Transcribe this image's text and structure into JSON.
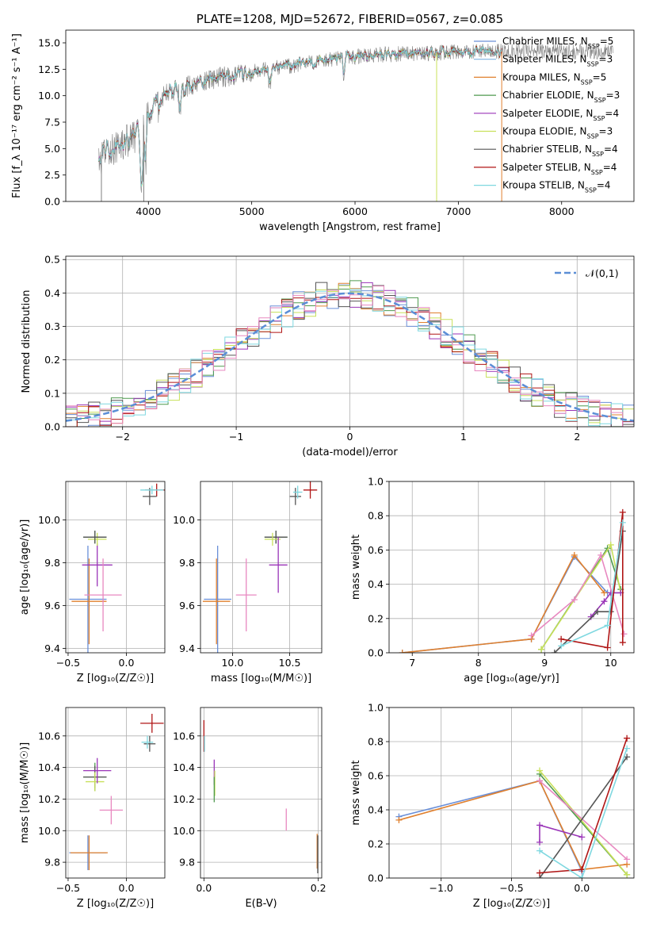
{
  "chart_data": [
    {
      "type": "line",
      "title": "PLATE=1208, MJD=52672, FIBERID=0567, z=0.085",
      "xlabel": "wavelength [Angstrom, rest frame]",
      "ylabel": "Flux [f_λ 10⁻¹⁷ erg cm⁻² s⁻¹ A⁻¹]",
      "xlim": [
        3200,
        8700
      ],
      "ylim": [
        0,
        16.2
      ],
      "xticks": [
        "4000",
        "5000",
        "6000",
        "7000",
        "8000"
      ],
      "yticks": [
        "0.0",
        "2.5",
        "5.0",
        "7.5",
        "10.0",
        "12.5",
        "15.0"
      ],
      "legend_position": "top-right",
      "observed_data_color": "#808080",
      "series": [
        {
          "name": "Chabrier MILES, N_SSP=5",
          "color": "#6a8fd8"
        },
        {
          "name": "Salpeter MILES, N_SSP=3",
          "color": "#7fb3e0"
        },
        {
          "name": "Kroupa MILES, N_SSP=5",
          "color": "#e0802e"
        },
        {
          "name": "Chabrier ELODIE, N_SSP=3",
          "color": "#4f9a4f"
        },
        {
          "name": "Salpeter ELODIE, N_SSP=4",
          "color": "#9a35b8"
        },
        {
          "name": "Kroupa ELODIE, N_SSP=3",
          "color": "#c8e05a"
        },
        {
          "name": "Chabrier STELIB, N_SSP=4",
          "color": "#555555"
        },
        {
          "name": "Salpeter STELIB, N_SSP=4",
          "color": "#b01515"
        },
        {
          "name": "Kroupa STELIB, N_SSP=4",
          "color": "#7fd8e0"
        }
      ],
      "continuum_points": [
        [
          3520,
          3.5
        ],
        [
          3600,
          4.8
        ],
        [
          3700,
          5.2
        ],
        [
          3800,
          5.8
        ],
        [
          3900,
          6.3
        ],
        [
          4000,
          8.0
        ],
        [
          4100,
          9.8
        ],
        [
          4200,
          10.3
        ],
        [
          4400,
          11.0
        ],
        [
          4600,
          11.5
        ],
        [
          4800,
          11.9
        ],
        [
          5000,
          12.2
        ],
        [
          5200,
          12.6
        ],
        [
          5500,
          13.0
        ],
        [
          5800,
          13.5
        ],
        [
          6000,
          13.7
        ],
        [
          6300,
          13.9
        ],
        [
          6600,
          14.0
        ],
        [
          6900,
          14.1
        ],
        [
          7200,
          14.2
        ],
        [
          7420,
          14.2
        ]
      ],
      "observed_extent": [
        3520,
        8500
      ]
    },
    {
      "type": "bar",
      "xlabel": "(data-model)/error",
      "ylabel": "Normed distribution",
      "xlim": [
        -2.5,
        2.5
      ],
      "ylim": [
        0,
        0.51
      ],
      "xticks": [
        "−2",
        "−1",
        "0",
        "1",
        "2"
      ],
      "yticks": [
        "0.0",
        "0.1",
        "0.2",
        "0.3",
        "0.4",
        "0.5"
      ],
      "legend": "𝒩(0,1)",
      "normal_curve_color": "#5b8ed6",
      "bin_width": 0.1
    },
    {
      "type": "scatter",
      "xlabel": "Z [log₁₀(Z/Z☉)]",
      "ylabel": "age  [log₁₀(age/yr)]",
      "xlim": [
        -0.52,
        0.33
      ],
      "ylim": [
        9.38,
        10.18
      ],
      "xticks": [
        "−0.5",
        "0.0"
      ],
      "yticks": [
        "9.4",
        "9.6",
        "9.8",
        "10.0"
      ],
      "points": [
        {
          "x": -0.33,
          "xerr": 0.16,
          "y": 9.63,
          "yerr": 0.25,
          "color": "#6a8fd8"
        },
        {
          "x": -0.32,
          "xerr": 0.15,
          "y": 9.62,
          "yerr": 0.2,
          "color": "#e0802e"
        },
        {
          "x": -0.27,
          "xerr": 0.1,
          "y": 9.92,
          "yerr": 0.03,
          "color": "#4f9a4f"
        },
        {
          "x": -0.25,
          "xerr": 0.13,
          "y": 9.79,
          "yerr": 0.1,
          "color": "#9a35b8"
        },
        {
          "x": -0.25,
          "xerr": 0.08,
          "y": 9.91,
          "yerr": 0.03,
          "color": "#c8e05a"
        },
        {
          "x": -0.27,
          "xerr": 0.1,
          "y": 9.92,
          "yerr": 0.03,
          "color": "#555555"
        },
        {
          "x": -0.2,
          "xerr": 0.16,
          "y": 9.65,
          "yerr": 0.17,
          "color": "#e888c0"
        },
        {
          "x": 0.26,
          "xerr": 0.1,
          "y": 10.14,
          "yerr": 0.03,
          "color": "#b01515"
        },
        {
          "x": 0.2,
          "xerr": 0.06,
          "y": 10.11,
          "yerr": 0.04,
          "color": "#555555"
        },
        {
          "x": 0.22,
          "xerr": 0.1,
          "y": 10.14,
          "yerr": 0.02,
          "color": "#7fd8e0"
        }
      ]
    },
    {
      "type": "scatter",
      "xlabel": "mass [log₁₀(M/M☉)]",
      "ylabel": "",
      "xlim": [
        9.72,
        10.78
      ],
      "ylim": [
        9.38,
        10.18
      ],
      "xticks": [
        "10.0",
        "10.5"
      ],
      "yticks": [
        "9.4",
        "9.6",
        "9.8",
        "10.0"
      ],
      "points": [
        {
          "x": 9.87,
          "xerr": 0.12,
          "y": 9.63,
          "yerr": 0.25,
          "color": "#6a8fd8"
        },
        {
          "x": 9.86,
          "xerr": 0.12,
          "y": 9.62,
          "yerr": 0.2,
          "color": "#e0802e"
        },
        {
          "x": 10.38,
          "xerr": 0.1,
          "y": 9.92,
          "yerr": 0.03,
          "color": "#4f9a4f"
        },
        {
          "x": 10.38,
          "xerr": 0.1,
          "y": 9.92,
          "yerr": 0.03,
          "color": "#555555"
        },
        {
          "x": 10.35,
          "xerr": 0.07,
          "y": 9.91,
          "yerr": 0.03,
          "color": "#c8e05a"
        },
        {
          "x": 10.4,
          "xerr": 0.08,
          "y": 9.79,
          "yerr": 0.13,
          "color": "#9a35b8"
        },
        {
          "x": 10.12,
          "xerr": 0.09,
          "y": 9.65,
          "yerr": 0.17,
          "color": "#e888c0"
        },
        {
          "x": 10.68,
          "xerr": 0.06,
          "y": 10.14,
          "yerr": 0.04,
          "color": "#b01515"
        },
        {
          "x": 10.55,
          "xerr": 0.05,
          "y": 10.11,
          "yerr": 0.04,
          "color": "#555555"
        },
        {
          "x": 10.57,
          "xerr": 0.04,
          "y": 10.13,
          "yerr": 0.03,
          "color": "#7fd8e0"
        }
      ]
    },
    {
      "type": "line",
      "xlabel": "age  [log₁₀(age/yr)]",
      "ylabel": "mass weight",
      "xlim": [
        6.65,
        10.35
      ],
      "ylim": [
        0,
        1.0
      ],
      "xticks": [
        "7",
        "8",
        "9",
        "10"
      ],
      "yticks": [
        "0.0",
        "0.2",
        "0.4",
        "0.6",
        "0.8",
        "1.0"
      ],
      "series": [
        {
          "color": "#6a8fd8",
          "x": [
            6.85,
            8.8,
            9.45,
            9.95
          ],
          "y": [
            0.0,
            0.08,
            0.56,
            0.35
          ]
        },
        {
          "color": "#e0802e",
          "x": [
            6.85,
            8.8,
            9.45,
            9.9
          ],
          "y": [
            0.0,
            0.08,
            0.57,
            0.35
          ]
        },
        {
          "color": "#4f9a4f",
          "x": [
            8.95,
            9.95,
            10.15
          ],
          "y": [
            0.02,
            0.61,
            0.37
          ]
        },
        {
          "color": "#c8e05a",
          "x": [
            8.95,
            10.0,
            10.15
          ],
          "y": [
            0.02,
            0.63,
            0.35
          ]
        },
        {
          "color": "#9a35b8",
          "x": [
            9.7,
            9.9,
            10.0,
            10.15
          ],
          "y": [
            0.21,
            0.3,
            0.35,
            0.35
          ]
        },
        {
          "color": "#e888c0",
          "x": [
            8.8,
            9.45,
            9.85,
            10.2
          ],
          "y": [
            0.1,
            0.31,
            0.57,
            0.11
          ]
        },
        {
          "color": "#555555",
          "x": [
            9.15,
            9.8,
            10.0,
            10.18
          ],
          "y": [
            0.0,
            0.24,
            0.24,
            0.71
          ]
        },
        {
          "color": "#b01515",
          "x": [
            9.25,
            9.95,
            10.18,
            10.18
          ],
          "y": [
            0.08,
            0.03,
            0.82,
            0.06
          ]
        },
        {
          "color": "#7fd8e0",
          "x": [
            9.25,
            9.95,
            10.18
          ],
          "y": [
            0.04,
            0.16,
            0.76
          ]
        }
      ]
    },
    {
      "type": "scatter",
      "xlabel": "Z [log₁₀(Z/Z☉)]",
      "ylabel": "mass [log₁₀(M/M☉)]",
      "xlim": [
        -0.52,
        0.33
      ],
      "ylim": [
        9.7,
        10.78
      ],
      "xticks": [
        "−0.5",
        "0.0"
      ],
      "yticks": [
        "9.8",
        "10.0",
        "10.2",
        "10.4",
        "10.6"
      ],
      "points": [
        {
          "x": -0.33,
          "xerr": 0.16,
          "y": 9.86,
          "yerr": 0.11,
          "color": "#6a8fd8"
        },
        {
          "x": -0.32,
          "xerr": 0.16,
          "y": 9.86,
          "yerr": 0.11,
          "color": "#e0802e"
        },
        {
          "x": -0.27,
          "xerr": 0.1,
          "y": 10.34,
          "yerr": 0.09,
          "color": "#4f9a4f"
        },
        {
          "x": -0.27,
          "xerr": 0.1,
          "y": 10.34,
          "yerr": 0.07,
          "color": "#555555"
        },
        {
          "x": -0.27,
          "xerr": 0.08,
          "y": 10.31,
          "yerr": 0.06,
          "color": "#c8e05a"
        },
        {
          "x": -0.25,
          "xerr": 0.12,
          "y": 10.38,
          "yerr": 0.08,
          "color": "#9a35b8"
        },
        {
          "x": -0.13,
          "xerr": 0.1,
          "y": 10.13,
          "yerr": 0.09,
          "color": "#e888c0"
        },
        {
          "x": 0.22,
          "xerr": 0.1,
          "y": 10.68,
          "yerr": 0.06,
          "color": "#b01515"
        },
        {
          "x": 0.2,
          "xerr": 0.05,
          "y": 10.55,
          "yerr": 0.05,
          "color": "#555555"
        },
        {
          "x": 0.18,
          "xerr": 0.05,
          "y": 10.56,
          "yerr": 0.04,
          "color": "#7fd8e0"
        }
      ]
    },
    {
      "type": "scatter",
      "xlabel": "E(B-V)",
      "ylabel": "",
      "xlim": [
        -0.006,
        0.206
      ],
      "ylim": [
        9.7,
        10.78
      ],
      "xticks": [
        "0.0",
        "0.2"
      ],
      "yticks": [
        "9.8",
        "10.0",
        "10.2",
        "10.4",
        "10.6"
      ],
      "points": [
        {
          "x": 0.0,
          "y": 10.6,
          "yerr": 0.1,
          "color": "#b01515"
        },
        {
          "x": 0.001,
          "y": 10.55,
          "yerr": 0.05,
          "color": "#7fd8e0"
        },
        {
          "x": 0.018,
          "y": 10.37,
          "yerr": 0.08,
          "color": "#9a35b8"
        },
        {
          "x": 0.019,
          "y": 10.3,
          "yerr": 0.08,
          "color": "#c8e05a"
        },
        {
          "x": 0.018,
          "y": 10.26,
          "yerr": 0.08,
          "color": "#4f9a4f"
        },
        {
          "x": 0.144,
          "y": 10.07,
          "yerr": 0.07,
          "color": "#e888c0"
        },
        {
          "x": 0.198,
          "y": 9.87,
          "yerr": 0.11,
          "color": "#e0802e"
        },
        {
          "x": 0.199,
          "y": 9.85,
          "yerr": 0.12,
          "color": "#555555"
        }
      ]
    },
    {
      "type": "line",
      "xlabel": "Z [log₁₀(Z/Z☉)]",
      "ylabel": "mass weight",
      "xlim": [
        -1.37,
        0.37
      ],
      "ylim": [
        0,
        1.0
      ],
      "xticks": [
        "−1.0",
        "−0.5",
        "0.0"
      ],
      "yticks": [
        "0.0",
        "0.2",
        "0.4",
        "0.6",
        "0.8",
        "1.0"
      ],
      "series": [
        {
          "color": "#6a8fd8",
          "x": [
            -1.3,
            -0.3,
            0.0
          ],
          "y": [
            0.36,
            0.57,
            0.04
          ]
        },
        {
          "color": "#e0802e",
          "x": [
            -1.3,
            -0.3,
            0.0,
            0.32
          ],
          "y": [
            0.34,
            0.57,
            0.05,
            0.08
          ]
        },
        {
          "color": "#4f9a4f",
          "x": [
            -0.3,
            0.32
          ],
          "y": [
            0.61,
            0.02
          ]
        },
        {
          "color": "#c8e05a",
          "x": [
            -0.3,
            0.32
          ],
          "y": [
            0.63,
            0.02
          ]
        },
        {
          "color": "#9a35b8",
          "x": [
            -0.3,
            -0.3,
            0.0
          ],
          "y": [
            0.21,
            0.31,
            0.24
          ]
        },
        {
          "color": "#e888c0",
          "x": [
            -0.3,
            0.32
          ],
          "y": [
            0.57,
            0.11
          ]
        },
        {
          "color": "#555555",
          "x": [
            -0.3,
            0.32
          ],
          "y": [
            0.0,
            0.71
          ]
        },
        {
          "color": "#b01515",
          "x": [
            -0.3,
            0.0,
            0.32
          ],
          "y": [
            0.03,
            0.05,
            0.82
          ]
        },
        {
          "color": "#7fd8e0",
          "x": [
            -0.3,
            0.0,
            0.32
          ],
          "y": [
            0.16,
            0.0,
            0.76
          ]
        }
      ]
    }
  ]
}
